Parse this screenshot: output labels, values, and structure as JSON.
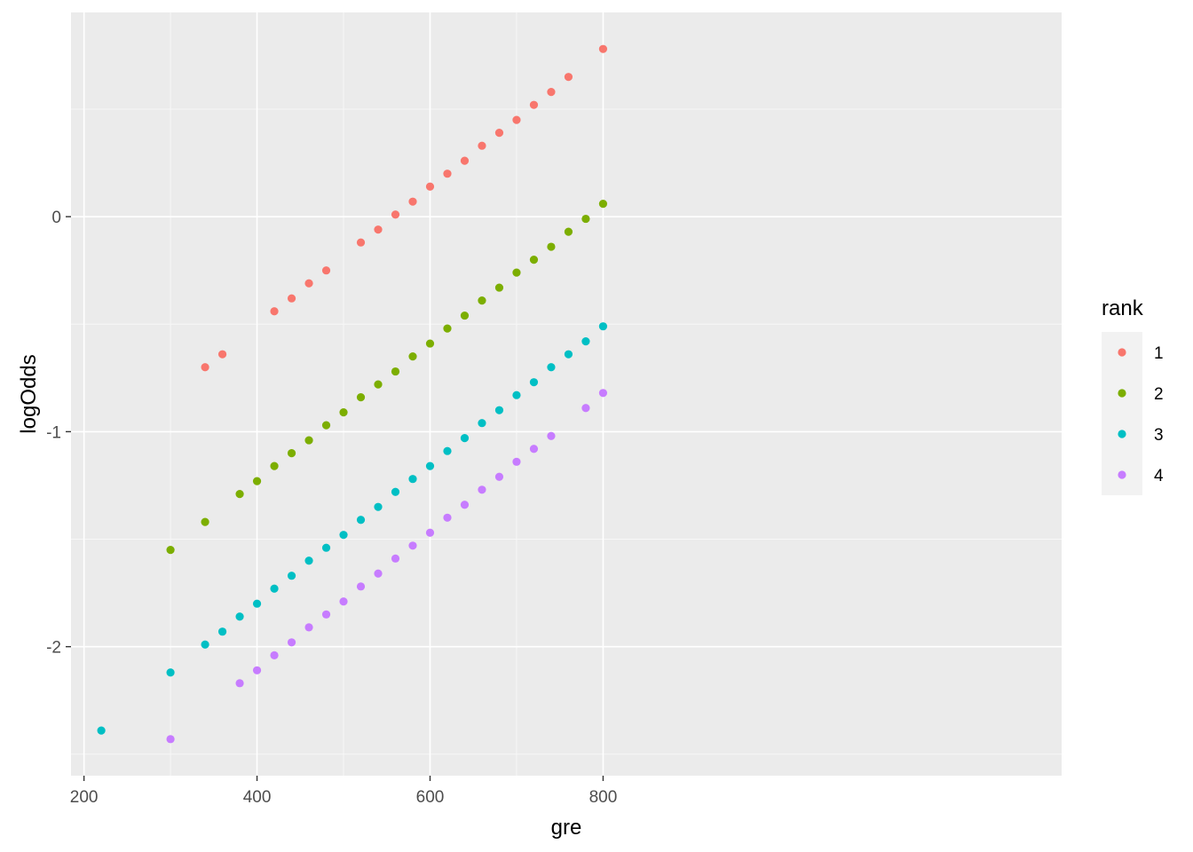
{
  "chart_data": {
    "type": "scatter",
    "title": "",
    "xlabel": "gre",
    "ylabel": "logOdds",
    "xlim": [
      185,
      1330
    ],
    "ylim": [
      -2.6,
      0.95
    ],
    "x_ticks": [
      200,
      400,
      600,
      800
    ],
    "x_tick_labels": [
      "200",
      "400",
      "600",
      "800"
    ],
    "y_ticks": [
      -2,
      -1,
      0
    ],
    "y_tick_labels": [
      "-2",
      "-1",
      "0"
    ],
    "grid": true,
    "background": "#ebebeb",
    "legend": {
      "title": "rank",
      "position": "right"
    },
    "series": [
      {
        "name": "1",
        "color": "#F8766D",
        "x": [
          340,
          360,
          420,
          440,
          460,
          480,
          520,
          540,
          560,
          580,
          600,
          620,
          640,
          660,
          680,
          700,
          720,
          740,
          760,
          800
        ],
        "y": [
          -0.7,
          -0.64,
          -0.44,
          -0.38,
          -0.31,
          -0.25,
          -0.12,
          -0.06,
          0.01,
          0.07,
          0.14,
          0.2,
          0.26,
          0.33,
          0.39,
          0.45,
          0.52,
          0.58,
          0.65,
          0.78
        ]
      },
      {
        "name": "2",
        "color": "#7CAE00",
        "x": [
          300,
          340,
          380,
          400,
          420,
          440,
          460,
          480,
          500,
          520,
          540,
          560,
          580,
          600,
          620,
          640,
          660,
          680,
          700,
          720,
          740,
          760,
          780,
          800
        ],
        "y": [
          -1.55,
          -1.42,
          -1.29,
          -1.23,
          -1.16,
          -1.1,
          -1.04,
          -0.97,
          -0.91,
          -0.84,
          -0.78,
          -0.72,
          -0.65,
          -0.59,
          -0.52,
          -0.46,
          -0.39,
          -0.33,
          -0.26,
          -0.2,
          -0.14,
          -0.07,
          -0.01,
          0.06
        ]
      },
      {
        "name": "3",
        "color": "#00BFC4",
        "x": [
          220,
          300,
          340,
          360,
          380,
          400,
          420,
          440,
          460,
          480,
          500,
          520,
          540,
          560,
          580,
          600,
          620,
          640,
          660,
          680,
          700,
          720,
          740,
          760,
          780,
          800
        ],
        "y": [
          -2.39,
          -2.12,
          -1.99,
          -1.93,
          -1.86,
          -1.8,
          -1.73,
          -1.67,
          -1.6,
          -1.54,
          -1.48,
          -1.41,
          -1.35,
          -1.28,
          -1.22,
          -1.16,
          -1.09,
          -1.03,
          -0.96,
          -0.9,
          -0.83,
          -0.77,
          -0.7,
          -0.64,
          -0.58,
          -0.51
        ]
      },
      {
        "name": "4",
        "color": "#C77CFF",
        "x": [
          300,
          380,
          400,
          420,
          440,
          460,
          480,
          500,
          520,
          540,
          560,
          580,
          600,
          620,
          640,
          660,
          680,
          700,
          720,
          740,
          780,
          800
        ],
        "y": [
          -2.43,
          -2.17,
          -2.11,
          -2.04,
          -1.98,
          -1.91,
          -1.85,
          -1.79,
          -1.72,
          -1.66,
          -1.59,
          -1.53,
          -1.47,
          -1.4,
          -1.34,
          -1.27,
          -1.21,
          -1.14,
          -1.08,
          -1.02,
          -0.89,
          -0.82
        ]
      }
    ]
  }
}
